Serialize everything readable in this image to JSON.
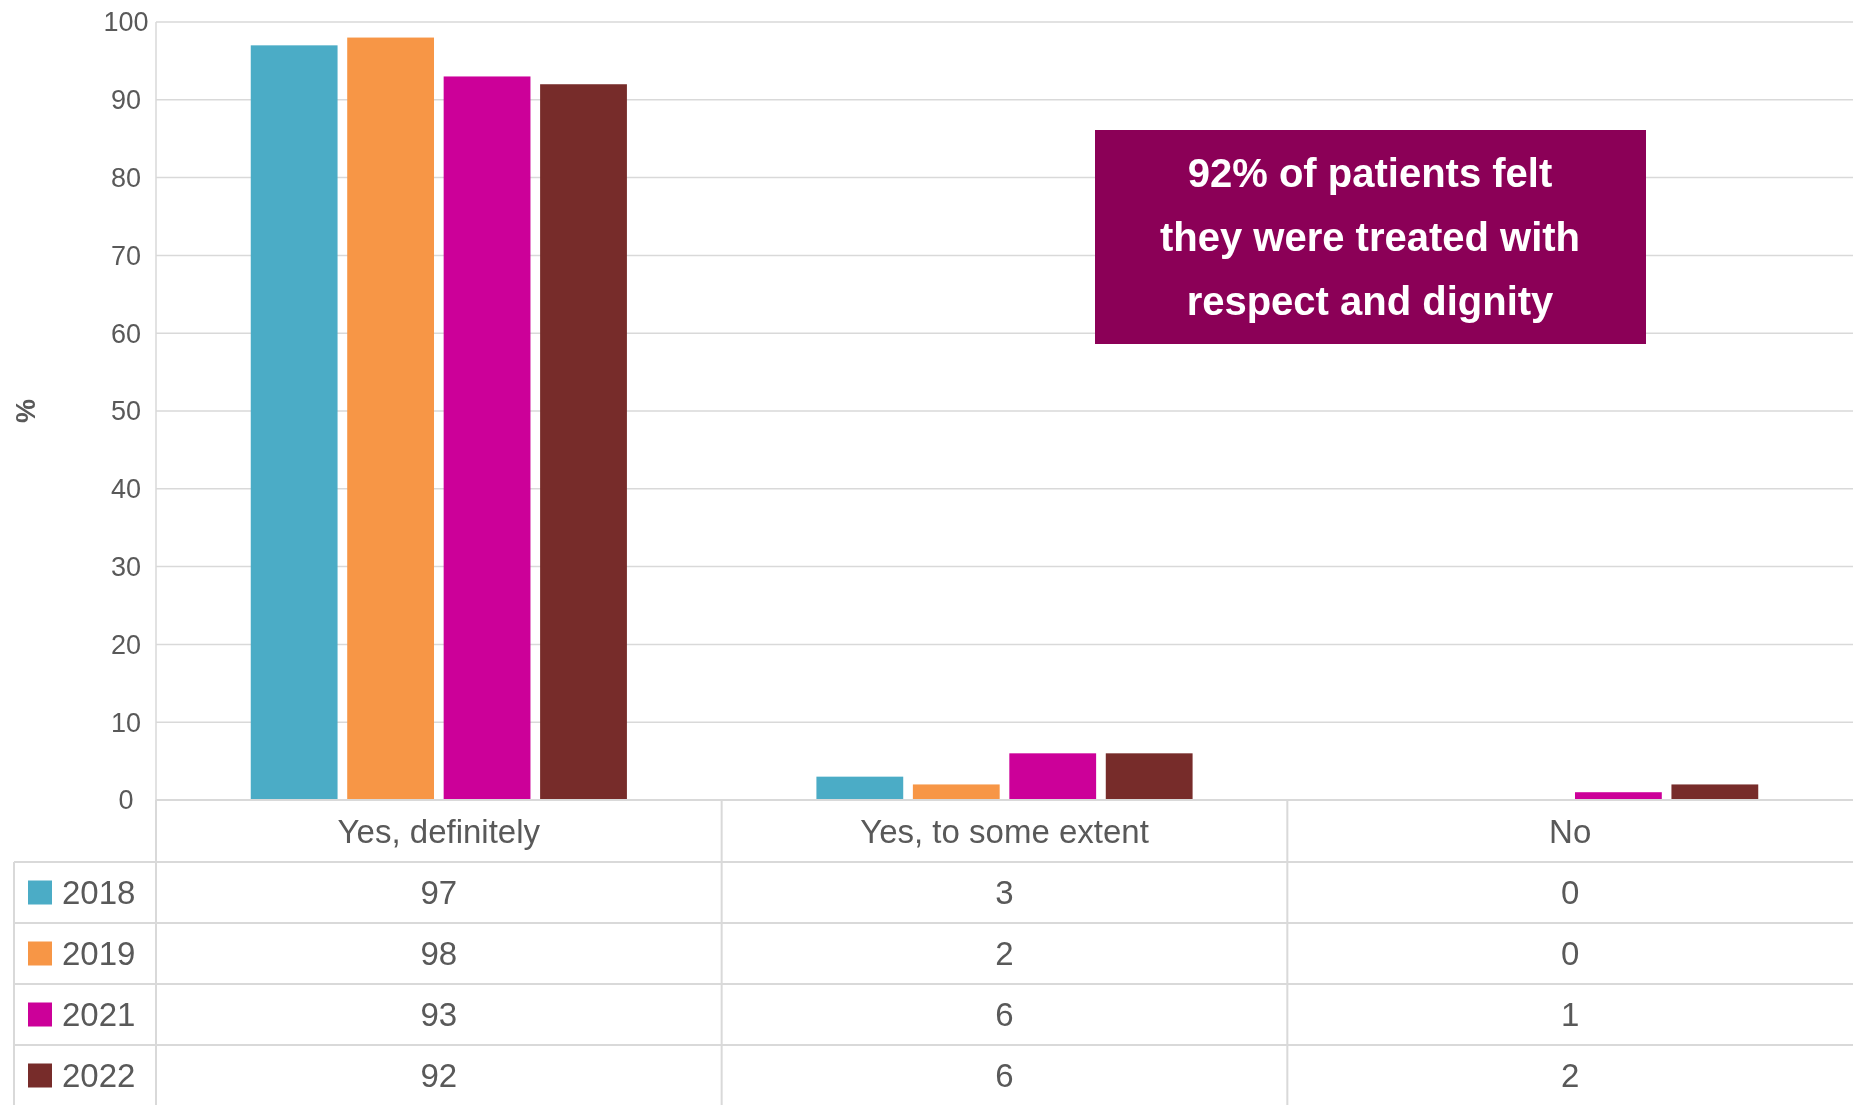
{
  "chart_data": {
    "type": "bar",
    "ylabel": "%",
    "categories": [
      "Yes, definitely",
      "Yes, to some extent",
      "No"
    ],
    "series": [
      {
        "name": "2018",
        "color": "#4bacc6",
        "values": [
          97,
          3,
          0
        ]
      },
      {
        "name": "2019",
        "color": "#f79646",
        "values": [
          98,
          2,
          0
        ]
      },
      {
        "name": "2021",
        "color": "#cc0099",
        "values": [
          93,
          6,
          1
        ]
      },
      {
        "name": "2022",
        "color": "#772c2a",
        "values": [
          92,
          6,
          2
        ]
      }
    ],
    "ylim": [
      0,
      100
    ],
    "yticks": [
      0,
      10,
      20,
      30,
      40,
      50,
      60,
      70,
      80,
      90,
      100
    ],
    "grid": "y",
    "legend": "bottom left",
    "data_labels": true,
    "annotations": [
      "92% of patients felt they were treated with respect and dignity"
    ]
  }
}
